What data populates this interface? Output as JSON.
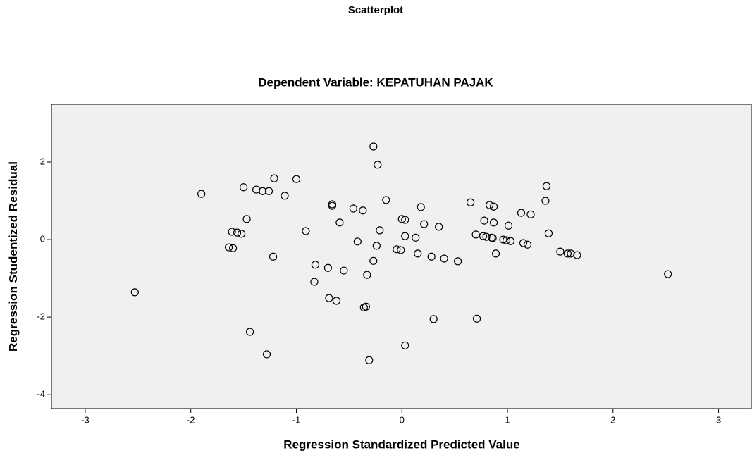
{
  "chart_data": {
    "type": "scatter",
    "title": "Scatterplot",
    "subtitle": "Dependent Variable: KEPATUHAN PAJAK",
    "x_label": "Regression Standardized Predicted Value",
    "y_label": "Regression Studentized Residual",
    "color": "#000000",
    "background": "#f0f0f0",
    "xlim": [
      -3.32,
      3.31
    ],
    "ylim": [
      -4.36,
      3.49
    ],
    "xticks": [
      -3,
      -2,
      -1,
      0,
      1,
      2,
      3
    ],
    "yticks": [
      -4,
      -2,
      0,
      2
    ],
    "series": [
      {
        "name": "Residuals",
        "color": "#000000",
        "x": [
          -2.53,
          -1.9,
          -1.64,
          -1.6,
          -1.61,
          -1.56,
          -1.52,
          -1.5,
          -1.47,
          -1.44,
          -1.38,
          -1.32,
          -1.26,
          -1.28,
          -1.22,
          -1.21,
          -1.11,
          -1.0,
          -0.91,
          -0.83,
          -0.82,
          -0.7,
          -0.69,
          -0.66,
          -0.66,
          -0.62,
          -0.59,
          -0.55,
          -0.46,
          -0.42,
          -0.37,
          -0.36,
          -0.34,
          -0.33,
          -0.31,
          -0.27,
          -0.27,
          -0.24,
          -0.23,
          -0.21,
          -0.15,
          -0.05,
          -0.01,
          0.0,
          0.03,
          0.03,
          0.03,
          0.13,
          0.15,
          0.18,
          0.21,
          0.28,
          0.3,
          0.35,
          0.4,
          0.53,
          0.65,
          0.7,
          0.71,
          0.77,
          0.78,
          0.8,
          0.83,
          0.85,
          0.86,
          0.87,
          0.87,
          0.89,
          0.96,
          0.99,
          1.01,
          1.03,
          1.13,
          1.15,
          1.19,
          1.22,
          1.36,
          1.37,
          1.39,
          1.5,
          1.57,
          1.6,
          1.66,
          2.52
        ],
        "values": [
          -1.36,
          1.18,
          -0.2,
          -0.22,
          0.2,
          0.18,
          0.15,
          1.35,
          0.53,
          -2.38,
          1.29,
          1.25,
          1.25,
          -2.96,
          -0.44,
          1.58,
          1.13,
          1.56,
          0.22,
          -1.09,
          -0.65,
          -0.73,
          -1.51,
          0.91,
          0.87,
          -1.58,
          0.44,
          -0.8,
          0.8,
          -0.05,
          0.75,
          -1.75,
          -1.73,
          -0.91,
          -3.11,
          2.4,
          -0.55,
          -0.16,
          1.93,
          0.24,
          1.02,
          -0.25,
          -0.27,
          0.53,
          0.51,
          0.09,
          -2.73,
          0.05,
          -0.36,
          0.84,
          0.4,
          -0.44,
          -2.05,
          0.33,
          -0.49,
          -0.56,
          0.96,
          0.13,
          -2.04,
          0.09,
          0.49,
          0.07,
          0.89,
          0.05,
          0.04,
          0.85,
          0.44,
          -0.36,
          0.0,
          -0.02,
          0.36,
          -0.04,
          0.69,
          -0.09,
          -0.13,
          0.65,
          1.0,
          1.38,
          0.16,
          -0.31,
          -0.36,
          -0.36,
          -0.4,
          -0.89
        ]
      }
    ]
  }
}
